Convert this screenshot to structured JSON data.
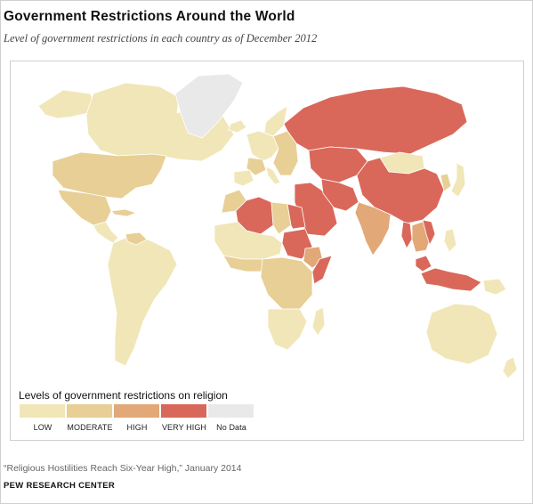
{
  "header": {
    "title": "Government Restrictions Around the World",
    "subtitle": "Level of government restrictions in each country as of December 2012"
  },
  "legend": {
    "title": "Levels of government restrictions on religion",
    "items": [
      {
        "key": "low",
        "label": "LOW",
        "color": "#f1e6b8"
      },
      {
        "key": "moderate",
        "label": "MODERATE",
        "color": "#e7cf95"
      },
      {
        "key": "high",
        "label": "HIGH",
        "color": "#e2a877"
      },
      {
        "key": "very_high",
        "label": "VERY HIGH",
        "color": "#d9685a"
      },
      {
        "key": "no_data",
        "label": "No Data",
        "color": "#e9e9e9"
      }
    ]
  },
  "footer": {
    "source": "“Religious Hostilities Reach Six-Year High,” January 2014",
    "credit": "PEW RESEARCH CENTER"
  },
  "map": {
    "regions": [
      {
        "name": "alaska",
        "level": "low"
      },
      {
        "name": "canada",
        "level": "low"
      },
      {
        "name": "greenland",
        "level": "no_data"
      },
      {
        "name": "iceland",
        "level": "low"
      },
      {
        "name": "united-states",
        "level": "moderate"
      },
      {
        "name": "mexico",
        "level": "moderate"
      },
      {
        "name": "central-america",
        "level": "low"
      },
      {
        "name": "cuba",
        "level": "moderate"
      },
      {
        "name": "south-america",
        "level": "low"
      },
      {
        "name": "venezuela",
        "level": "moderate"
      },
      {
        "name": "western-europe",
        "level": "low"
      },
      {
        "name": "france",
        "level": "moderate"
      },
      {
        "name": "iberia",
        "level": "low"
      },
      {
        "name": "italy",
        "level": "low"
      },
      {
        "name": "eastern-europe",
        "level": "moderate"
      },
      {
        "name": "scandinavia",
        "level": "low"
      },
      {
        "name": "russia",
        "level": "very_high"
      },
      {
        "name": "central-asia",
        "level": "very_high"
      },
      {
        "name": "mongolia",
        "level": "low"
      },
      {
        "name": "china",
        "level": "very_high"
      },
      {
        "name": "middle-east",
        "level": "very_high"
      },
      {
        "name": "iran",
        "level": "very_high"
      },
      {
        "name": "india",
        "level": "high"
      },
      {
        "name": "myanmar",
        "level": "very_high"
      },
      {
        "name": "southeast-asia",
        "level": "high"
      },
      {
        "name": "vietnam",
        "level": "very_high"
      },
      {
        "name": "malaysia",
        "level": "very_high"
      },
      {
        "name": "indonesia",
        "level": "very_high"
      },
      {
        "name": "japan",
        "level": "low"
      },
      {
        "name": "korea",
        "level": "moderate"
      },
      {
        "name": "philippines",
        "level": "low"
      },
      {
        "name": "algeria",
        "level": "very_high"
      },
      {
        "name": "morocco",
        "level": "moderate"
      },
      {
        "name": "libya",
        "level": "moderate"
      },
      {
        "name": "egypt",
        "level": "very_high"
      },
      {
        "name": "sudan",
        "level": "very_high"
      },
      {
        "name": "sahel",
        "level": "low"
      },
      {
        "name": "west-africa",
        "level": "moderate"
      },
      {
        "name": "horn-of-africa",
        "level": "high"
      },
      {
        "name": "somalia",
        "level": "very_high"
      },
      {
        "name": "central-africa",
        "level": "moderate"
      },
      {
        "name": "southern-africa",
        "level": "low"
      },
      {
        "name": "madagascar",
        "level": "low"
      },
      {
        "name": "australia",
        "level": "low"
      },
      {
        "name": "new-zealand",
        "level": "low"
      },
      {
        "name": "papua-new-guinea",
        "level": "low"
      }
    ]
  }
}
